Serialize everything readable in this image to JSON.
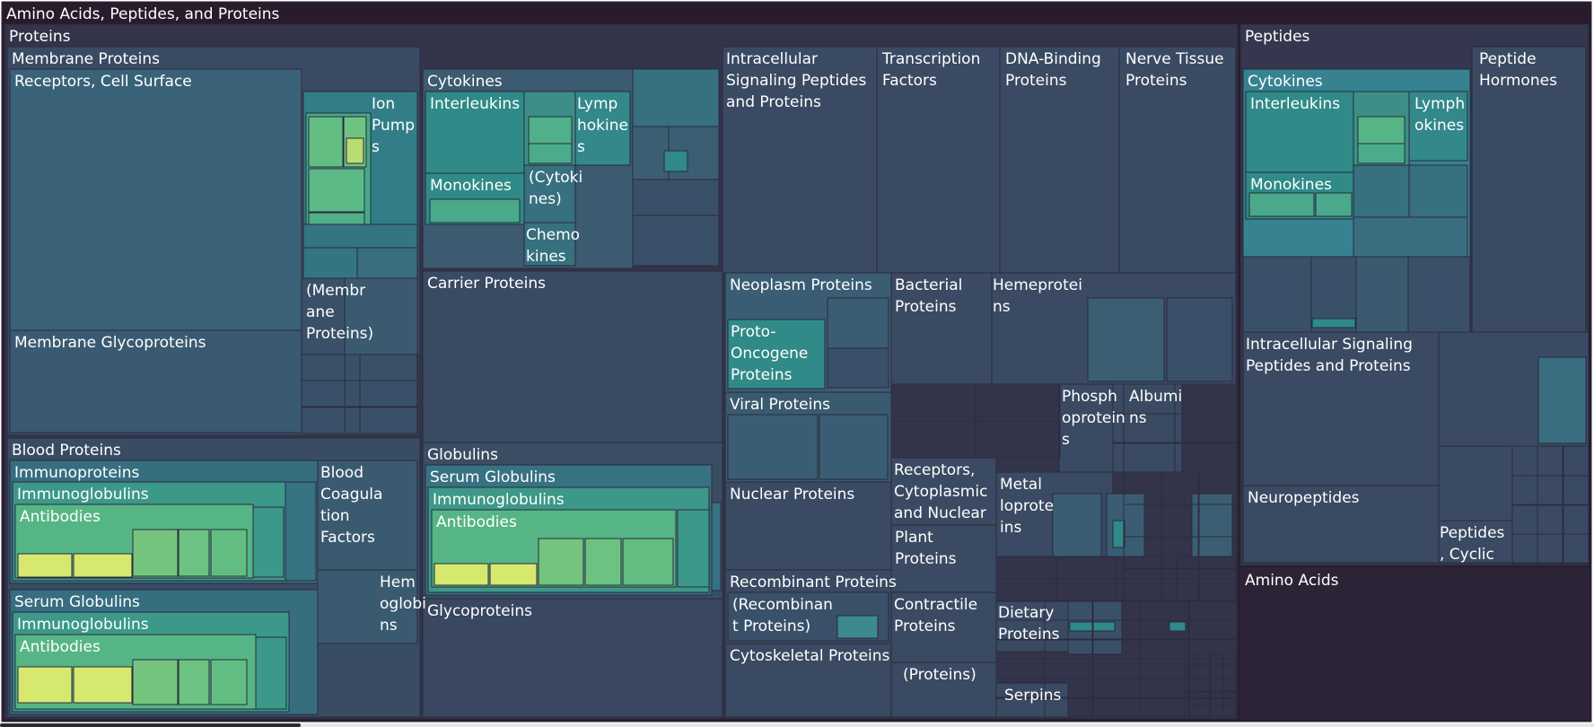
{
  "chart_data": {
    "type": "treemap",
    "title": "Amino Acids, Peptides, and Proteins",
    "color_scale": [
      "#2a1b2c",
      "#3a4a62",
      "#2e7a8a",
      "#43b08f",
      "#d7e86f"
    ],
    "nodes": [
      {
        "id": "root",
        "label": "Amino Acids, Peptides, and Proteins",
        "depth": 0
      },
      {
        "id": "proteins",
        "label": "Proteins",
        "depth": 1
      },
      {
        "id": "membrane_proteins",
        "label": "Membrane Proteins",
        "depth": 2
      },
      {
        "id": "receptors_cell_surface",
        "label": "Receptors, Cell Surface",
        "depth": 3
      },
      {
        "id": "ion_pumps",
        "label": "Ion Pumps",
        "depth": 3
      },
      {
        "id": "membrane_proteins_paren",
        "label": "(Membrane Proteins)",
        "depth": 3
      },
      {
        "id": "membrane_glycoproteins",
        "label": "Membrane Glycoproteins",
        "depth": 3
      },
      {
        "id": "blood_proteins",
        "label": "Blood Proteins",
        "depth": 2
      },
      {
        "id": "bp_immunoproteins",
        "label": "Immunoproteins",
        "depth": 3
      },
      {
        "id": "bp_immunoproteins_ig",
        "label": "Immunoglobulins",
        "depth": 4
      },
      {
        "id": "bp_immunoproteins_ab",
        "label": "Antibodies",
        "depth": 5
      },
      {
        "id": "blood_coagulation_factors",
        "label": "Blood Coagulation Factors",
        "depth": 3
      },
      {
        "id": "hemoglobins",
        "label": "Hemoglobins",
        "depth": 3
      },
      {
        "id": "bp_serum_globulins",
        "label": "Serum Globulins",
        "depth": 3
      },
      {
        "id": "bp_serum_globulins_ig",
        "label": "Immunoglobulins",
        "depth": 4
      },
      {
        "id": "bp_serum_globulins_ab",
        "label": "Antibodies",
        "depth": 5
      },
      {
        "id": "cytokines",
        "label": "Cytokines",
        "depth": 2
      },
      {
        "id": "interleukins",
        "label": "Interleukins",
        "depth": 3
      },
      {
        "id": "lymphokines",
        "label": "Lymphokines",
        "depth": 3
      },
      {
        "id": "monokines",
        "label": "Monokines",
        "depth": 3
      },
      {
        "id": "cytokines_paren",
        "label": "(Cytokines)",
        "depth": 3
      },
      {
        "id": "chemokines",
        "label": "Chemokines",
        "depth": 3
      },
      {
        "id": "carrier_proteins",
        "label": "Carrier Proteins",
        "depth": 2
      },
      {
        "id": "globulins",
        "label": "Globulins",
        "depth": 2
      },
      {
        "id": "g_serum_globulins",
        "label": "Serum Globulins",
        "depth": 3
      },
      {
        "id": "g_immunoglobulins",
        "label": "Immunoglobulins",
        "depth": 4
      },
      {
        "id": "g_antibodies",
        "label": "Antibodies",
        "depth": 5
      },
      {
        "id": "glycoproteins",
        "label": "Glycoproteins",
        "depth": 2
      },
      {
        "id": "intracellular_signaling",
        "label": "Intracellular Signaling Peptides and Proteins",
        "depth": 2
      },
      {
        "id": "transcription_factors",
        "label": "Transcription Factors",
        "depth": 2
      },
      {
        "id": "dna_binding_proteins",
        "label": "DNA-Binding Proteins",
        "depth": 2
      },
      {
        "id": "nerve_tissue_proteins",
        "label": "Nerve Tissue Proteins",
        "depth": 2
      },
      {
        "id": "neoplasm_proteins",
        "label": "Neoplasm Proteins",
        "depth": 2
      },
      {
        "id": "proto_oncogene_proteins",
        "label": "Proto-Oncogene Proteins",
        "depth": 3
      },
      {
        "id": "bacterial_proteins",
        "label": "Bacterial Proteins",
        "depth": 2
      },
      {
        "id": "hemeproteins",
        "label": "Hemeproteins",
        "depth": 2
      },
      {
        "id": "viral_proteins",
        "label": "Viral Proteins",
        "depth": 2
      },
      {
        "id": "phosphoproteins",
        "label": "Phosphoproteins",
        "depth": 2
      },
      {
        "id": "albumins",
        "label": "Albumins",
        "depth": 2
      },
      {
        "id": "nuclear_proteins",
        "label": "Nuclear Proteins",
        "depth": 2
      },
      {
        "id": "receptors_cytoplasmic_nuclear",
        "label": "Receptors, Cytoplasmic and Nuclear",
        "depth": 2
      },
      {
        "id": "metalloproteins",
        "label": "Metalloproteins",
        "depth": 2
      },
      {
        "id": "plant_proteins",
        "label": "Plant Proteins",
        "depth": 2
      },
      {
        "id": "recombinant_proteins",
        "label": "Recombinant Proteins",
        "depth": 2
      },
      {
        "id": "recombinant_proteins_paren",
        "label": "(Recombinant Proteins)",
        "depth": 3
      },
      {
        "id": "contractile_proteins",
        "label": "Contractile Proteins",
        "depth": 2
      },
      {
        "id": "dietary_proteins",
        "label": "Dietary Proteins",
        "depth": 2
      },
      {
        "id": "proteins_paren",
        "label": "(Proteins)",
        "depth": 2
      },
      {
        "id": "cytoskeletal_proteins",
        "label": "Cytoskeletal Proteins",
        "depth": 2
      },
      {
        "id": "serpins",
        "label": "Serpins",
        "depth": 2
      },
      {
        "id": "peptides",
        "label": "Peptides",
        "depth": 1
      },
      {
        "id": "p_cytokines",
        "label": "Cytokines",
        "depth": 2
      },
      {
        "id": "p_interleukins",
        "label": "Interleukins",
        "depth": 3
      },
      {
        "id": "p_lymphokines",
        "label": "Lymphokines",
        "depth": 3
      },
      {
        "id": "p_monokines",
        "label": "Monokines",
        "depth": 3
      },
      {
        "id": "peptide_hormones",
        "label": "Peptide Hormones",
        "depth": 2
      },
      {
        "id": "p_intracellular_signaling",
        "label": "Intracellular Signaling Peptides and Proteins",
        "depth": 2
      },
      {
        "id": "neuropeptides",
        "label": "Neuropeptides",
        "depth": 2
      },
      {
        "id": "peptides_cyclic",
        "label": "Peptides, Cyclic",
        "depth": 2
      },
      {
        "id": "amino_acids",
        "label": "Amino Acids",
        "depth": 1
      }
    ]
  }
}
